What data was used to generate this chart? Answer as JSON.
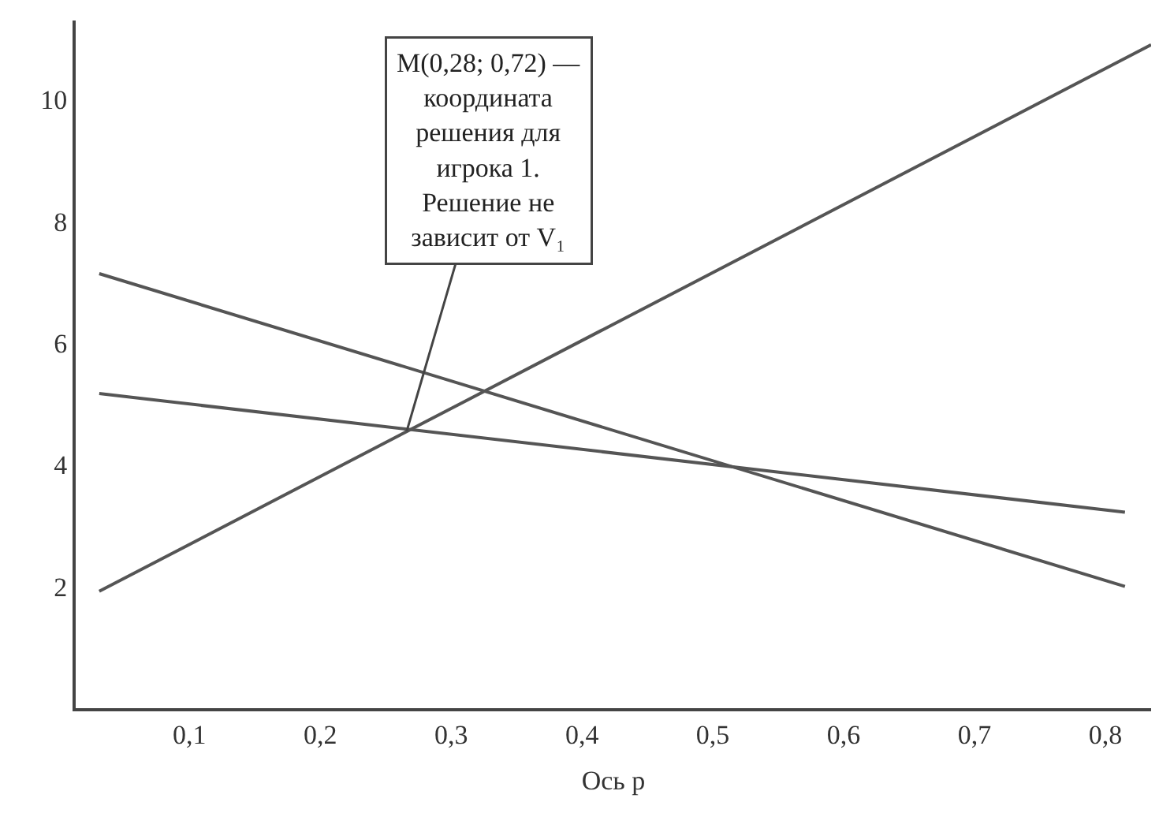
{
  "chart_data": {
    "type": "line",
    "xlabel": "Ось p",
    "xlim": [
      0.013,
      0.835
    ],
    "ylim": [
      0,
      11.3
    ],
    "xticks": [
      {
        "value": 0.1,
        "label": "0,1"
      },
      {
        "value": 0.2,
        "label": "0,2"
      },
      {
        "value": 0.3,
        "label": "0,3"
      },
      {
        "value": 0.4,
        "label": "0,4"
      },
      {
        "value": 0.5,
        "label": "0,5"
      },
      {
        "value": 0.6,
        "label": "0,6"
      },
      {
        "value": 0.7,
        "label": "0,7"
      },
      {
        "value": 0.8,
        "label": "0,8"
      }
    ],
    "yticks": [
      2,
      4,
      6,
      8,
      10
    ],
    "series": [
      {
        "color": "#555555",
        "x": [
          0.031,
          0.835
        ],
        "values": [
          1.92,
          10.9
        ]
      },
      {
        "color": "#555555",
        "x": [
          0.031,
          0.815
        ],
        "values": [
          7.14,
          2.0
        ]
      },
      {
        "color": "#555555",
        "x": [
          0.031,
          0.815
        ],
        "values": [
          5.17,
          3.22
        ]
      }
    ],
    "annotations": [
      {
        "text": "M(0,28; 0,72) —\nкоордината\nрешения для\nигрока 1.\nРешение не\nзависит от V₁",
        "x": 0.266,
        "y": 4.55
      }
    ],
    "grid": false,
    "marker": "none",
    "line_style": "solid"
  }
}
